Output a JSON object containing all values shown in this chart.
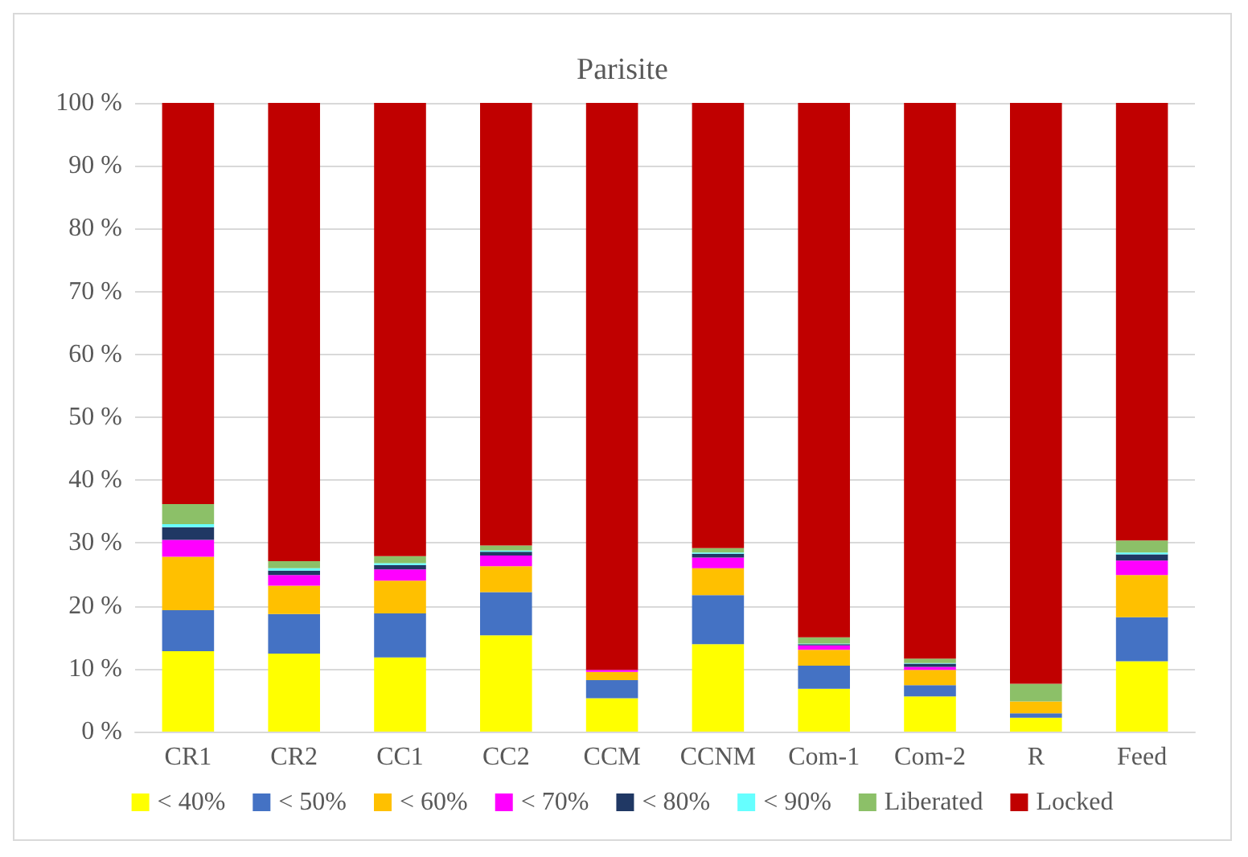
{
  "chart_data": {
    "type": "bar",
    "title": "Parisite",
    "stacked": true,
    "grid": "y",
    "legend": "bottom",
    "categories": [
      "CR1",
      "CR2",
      "CC1",
      "CC2",
      "CCM",
      "CCNM",
      "Com-1",
      "Com-2",
      "R",
      "Feed"
    ],
    "ylim": [
      0,
      100
    ],
    "yticks": [
      {
        "value": 0,
        "label": "0 %"
      },
      {
        "value": 10,
        "label": "10 %"
      },
      {
        "value": 20,
        "label": "20 %"
      },
      {
        "value": 30,
        "label": "30 %"
      },
      {
        "value": 40,
        "label": "40 %"
      },
      {
        "value": 50,
        "label": "50 %"
      },
      {
        "value": 60,
        "label": "60 %"
      },
      {
        "value": 70,
        "label": "70 %"
      },
      {
        "value": 80,
        "label": "80 %"
      },
      {
        "value": 90,
        "label": "90 %"
      },
      {
        "value": 100,
        "label": "100 %"
      }
    ],
    "series": [
      {
        "name": "< 40%",
        "color": "#ffff00",
        "values": [
          12.8,
          12.4,
          11.8,
          15.3,
          5.3,
          13.9,
          6.8,
          5.6,
          2.2,
          11.2
        ]
      },
      {
        "name": "< 50%",
        "color": "#4472c4",
        "values": [
          6.5,
          6.3,
          7.0,
          6.9,
          2.9,
          7.8,
          3.7,
          1.8,
          0.7,
          7.0
        ]
      },
      {
        "name": "< 60%",
        "color": "#ffc000",
        "values": [
          8.5,
          4.5,
          5.2,
          4.1,
          1.3,
          4.3,
          2.5,
          2.4,
          1.9,
          6.7
        ]
      },
      {
        "name": "< 70%",
        "color": "#ff00ff",
        "values": [
          2.7,
          1.7,
          1.8,
          1.7,
          0.3,
          1.7,
          0.7,
          0.5,
          null,
          2.3
        ]
      },
      {
        "name": "< 80%",
        "color": "#203864",
        "values": [
          2.0,
          0.7,
          0.7,
          0.6,
          0,
          0.6,
          0.2,
          0.5,
          0,
          1.0
        ]
      },
      {
        "name": "< 90%",
        "color": "#66ffff",
        "values": [
          0.5,
          0.4,
          0.3,
          0.2,
          0,
          0.2,
          0.1,
          0.1,
          0,
          0.3
        ]
      },
      {
        "name": "Liberated",
        "color": "#8cc068",
        "values": [
          3.2,
          1.1,
          1.1,
          0.8,
          0,
          0.7,
          1.0,
          0.7,
          2.8,
          1.9
        ]
      },
      {
        "name": "Locked",
        "color": "#c00000",
        "values": [
          63.8,
          72.9,
          72.1,
          70.4,
          90.2,
          70.8,
          85.0,
          88.4,
          92.4,
          69.6
        ]
      }
    ]
  }
}
